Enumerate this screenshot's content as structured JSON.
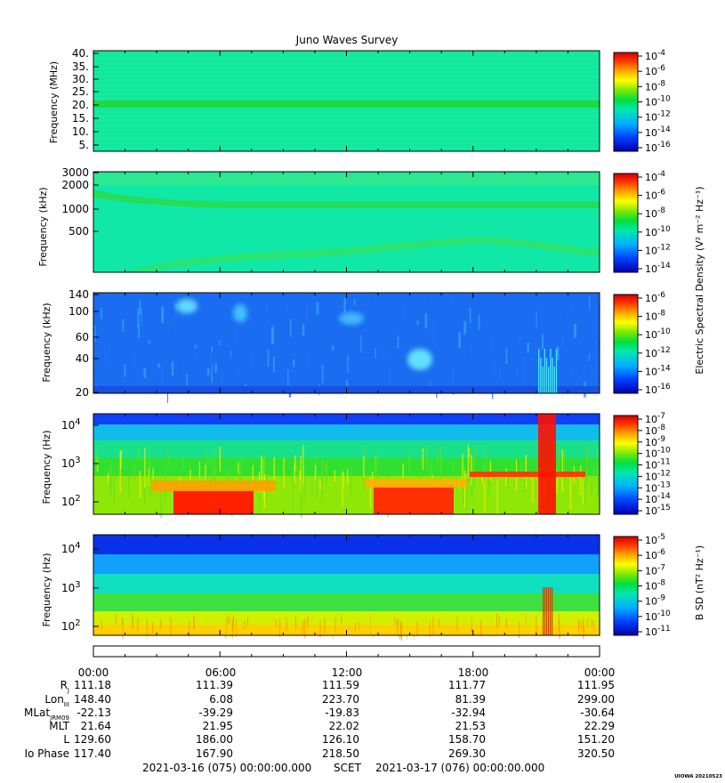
{
  "title": "Juno Waves Survey",
  "footer_note": "UIOWA 20210523",
  "time_line": {
    "start": "2021-03-16 (075) 00:00:00.000",
    "label": "SCET",
    "end": "2021-03-17 (076) 00:00:00.000"
  },
  "side_labels": {
    "esd": "Electric Spectral Density (V² m⁻² Hz⁻¹)",
    "bsd": "B SD (nT² Hz⁻¹)"
  },
  "colors": {
    "palette": [
      "#0000aa",
      "#0040ff",
      "#00b0ff",
      "#00e8c8",
      "#00e060",
      "#40e000",
      "#c8f000",
      "#ffff00",
      "#ffb000",
      "#ff5000",
      "#ff0000",
      "#c00000"
    ]
  },
  "ephemeris": {
    "ticks": [
      "00:00",
      "06:00",
      "12:00",
      "18:00",
      "00:00"
    ],
    "rows": [
      {
        "label": "RJ",
        "values": [
          "111.18",
          "111.39",
          "111.59",
          "111.77",
          "111.95"
        ]
      },
      {
        "label": "LonIII",
        "values": [
          "148.40",
          "6.08",
          "223.70",
          "81.39",
          "299.00"
        ]
      },
      {
        "label": "MLatJRM09",
        "values": [
          "-22.13",
          "-39.29",
          "-19.83",
          "-32.94",
          "-30.64"
        ]
      },
      {
        "label": "MLT",
        "values": [
          "21.64",
          "21.95",
          "22.02",
          "21.53",
          "22.29"
        ]
      },
      {
        "label": "L",
        "values": [
          "129.60",
          "186.00",
          "126.10",
          "158.70",
          "151.20"
        ]
      },
      {
        "label": "Io Phase",
        "values": [
          "117.40",
          "167.90",
          "218.50",
          "269.30",
          "320.50"
        ]
      }
    ]
  },
  "chart_data": [
    {
      "type": "heatmap",
      "title": "Juno Waves Survey",
      "ylabel": "Frequency (MHz)",
      "y_ticks": [
        "40.",
        "35.",
        "30.",
        "25.",
        "20.",
        "15.",
        "10.",
        "5."
      ],
      "ylim": [
        3.5,
        41
      ],
      "colorbar_ticks": [
        "10-4",
        "10-6",
        "10-8",
        "10-10",
        "10-12",
        "10-14",
        "10-16"
      ],
      "features": "uniform background near 10^-12 with a band near 21 MHz"
    },
    {
      "type": "heatmap",
      "ylabel": "Frequency (kHz)",
      "y_ticks": [
        "3000",
        "2000",
        "1000",
        "500"
      ],
      "yscale": "log",
      "colorbar_ticks": [
        "10-4",
        "10-6",
        "10-8",
        "10-10",
        "10-12",
        "10-14"
      ],
      "colorbar_label": "Electric Spectral Density (V² m⁻² Hz⁻¹)"
    },
    {
      "type": "heatmap",
      "ylabel": "Frequency (kHz)",
      "y_ticks": [
        "140",
        "100",
        "60",
        "40",
        "20"
      ],
      "colorbar_ticks": [
        "10-6",
        "10-8",
        "10-10",
        "10-12",
        "10-14",
        "10-16"
      ]
    },
    {
      "type": "heatmap",
      "ylabel": "Frequency (Hz)",
      "y_ticks": [
        "10^4",
        "10^3",
        "10^2"
      ],
      "yscale": "log",
      "colorbar_ticks": [
        "10-7",
        "10-8",
        "10-9",
        "10-10",
        "10-11",
        "10-12",
        "10-13",
        "10-14",
        "10-15"
      ]
    },
    {
      "type": "heatmap",
      "ylabel": "Frequency (Hz)",
      "y_ticks": [
        "10^4",
        "10^3",
        "10^2"
      ],
      "yscale": "log",
      "colorbar_ticks": [
        "10-5",
        "10-6",
        "10-7",
        "10-8",
        "10-9",
        "10-10",
        "10-11"
      ],
      "colorbar_label": "B SD (nT² Hz⁻¹)"
    }
  ]
}
